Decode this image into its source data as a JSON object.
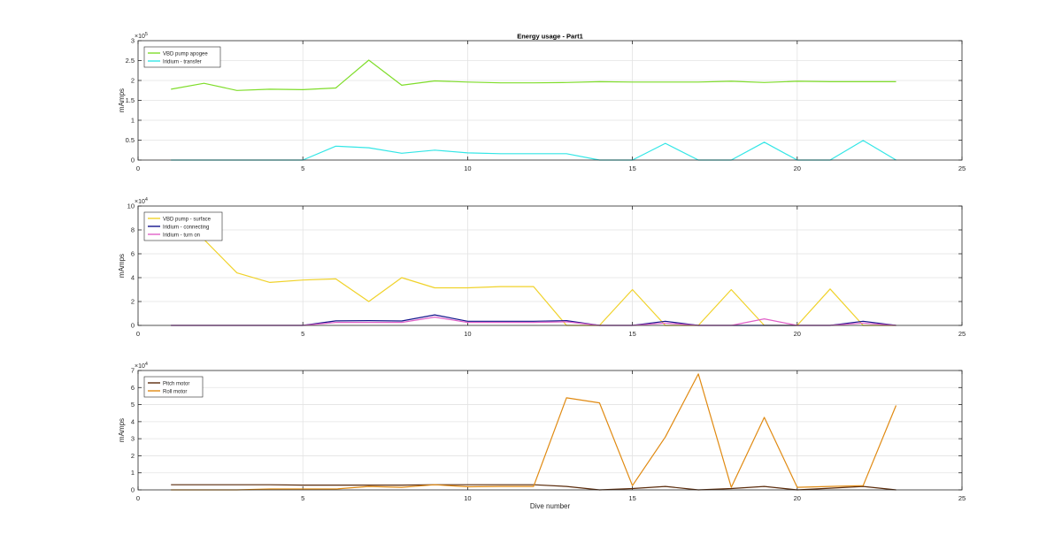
{
  "chart_data": [
    {
      "type": "line",
      "title": "Energy usage - Part1",
      "xlabel": "",
      "ylabel": "mAmps",
      "exponent_label": "×10",
      "exponent": "5",
      "xlim": [
        0,
        25
      ],
      "ylim": [
        0,
        300000
      ],
      "xticks": [
        0,
        5,
        10,
        15,
        20,
        25
      ],
      "yticks": [
        0,
        50000,
        100000,
        150000,
        200000,
        250000,
        300000
      ],
      "ytick_labels": [
        "0",
        "0.5",
        "1",
        "1.5",
        "2",
        "2.5",
        "3"
      ],
      "grid": true,
      "legend_position": "top-left",
      "x": [
        1,
        2,
        3,
        4,
        5,
        6,
        7,
        8,
        9,
        10,
        11,
        12,
        13,
        14,
        15,
        16,
        17,
        18,
        19,
        20,
        21,
        22,
        23
      ],
      "series": [
        {
          "name": "VBD pump apogee",
          "color": "#7fdd2a",
          "values": [
            178000,
            193000,
            175000,
            178000,
            177000,
            181000,
            251000,
            188000,
            199000,
            196000,
            194000,
            194000,
            195000,
            197000,
            196000,
            196000,
            196000,
            198000,
            195000,
            198000,
            197000,
            197000,
            197000
          ]
        },
        {
          "name": "Iridium - transfer",
          "color": "#33e6e6",
          "values": [
            0,
            0,
            0,
            0,
            0,
            35000,
            31000,
            17000,
            25000,
            18000,
            16000,
            16000,
            16000,
            0,
            0,
            42000,
            0,
            0,
            45000,
            0,
            0,
            49000,
            0
          ]
        }
      ]
    },
    {
      "type": "line",
      "title": "",
      "xlabel": "",
      "ylabel": "mAmps",
      "exponent_label": "×10",
      "exponent": "4",
      "xlim": [
        0,
        25
      ],
      "ylim": [
        0,
        100000
      ],
      "xticks": [
        0,
        5,
        10,
        15,
        20,
        25
      ],
      "yticks": [
        0,
        20000,
        40000,
        60000,
        80000,
        100000
      ],
      "ytick_labels": [
        "0",
        "2",
        "4",
        "6",
        "8",
        "10"
      ],
      "grid": true,
      "legend_position": "top-left",
      "x": [
        1,
        2,
        3,
        4,
        5,
        6,
        7,
        8,
        9,
        10,
        11,
        12,
        13,
        14,
        15,
        16,
        17,
        18,
        19,
        20,
        21,
        22,
        23
      ],
      "series": [
        {
          "name": "VBD pump - surface",
          "color": "#f0d22a",
          "values": [
            85000,
            72000,
            44000,
            36000,
            38000,
            39000,
            20000,
            40000,
            31500,
            31500,
            32500,
            32500,
            0,
            0,
            30000,
            0,
            0,
            30000,
            0,
            0,
            30500,
            0,
            0
          ]
        },
        {
          "name": "Iridium - connecting",
          "color": "#14148c",
          "values": [
            0,
            0,
            0,
            0,
            0,
            3800,
            4000,
            3700,
            8800,
            3500,
            3500,
            3500,
            4000,
            0,
            0,
            3500,
            0,
            0,
            0,
            0,
            0,
            3500,
            0
          ]
        },
        {
          "name": "Iridium - turn on",
          "color": "#e060c8",
          "values": [
            0,
            0,
            0,
            0,
            0,
            2500,
            2500,
            2500,
            7000,
            2500,
            2500,
            2500,
            3000,
            0,
            0,
            2000,
            0,
            0,
            5500,
            0,
            0,
            2000,
            0
          ]
        }
      ]
    },
    {
      "type": "line",
      "title": "",
      "xlabel": "Dive number",
      "ylabel": "mAmps",
      "exponent_label": "×10",
      "exponent": "4",
      "xlim": [
        0,
        25
      ],
      "ylim": [
        0,
        70000
      ],
      "xticks": [
        0,
        5,
        10,
        15,
        20,
        25
      ],
      "yticks": [
        0,
        10000,
        20000,
        30000,
        40000,
        50000,
        60000,
        70000
      ],
      "ytick_labels": [
        "0",
        "1",
        "2",
        "3",
        "4",
        "5",
        "6",
        "7"
      ],
      "grid": true,
      "legend_position": "top-left",
      "x": [
        1,
        2,
        3,
        4,
        5,
        6,
        7,
        8,
        9,
        10,
        11,
        12,
        13,
        14,
        15,
        16,
        17,
        18,
        19,
        20,
        21,
        22,
        23
      ],
      "series": [
        {
          "name": "Pitch motor",
          "color": "#5a2a0a",
          "values": [
            3000,
            3000,
            3000,
            3000,
            2800,
            2800,
            2800,
            2800,
            3000,
            3000,
            3000,
            3000,
            2000,
            0,
            800,
            2000,
            0,
            800,
            2000,
            0,
            1000,
            2000,
            0
          ]
        },
        {
          "name": "Roll motor",
          "color": "#e08a12",
          "values": [
            0,
            0,
            0,
            500,
            500,
            500,
            2000,
            1500,
            3000,
            1800,
            2000,
            2000,
            54000,
            51000,
            2500,
            31000,
            68000,
            1500,
            42500,
            1500,
            2000,
            2500,
            49500
          ]
        }
      ]
    }
  ]
}
